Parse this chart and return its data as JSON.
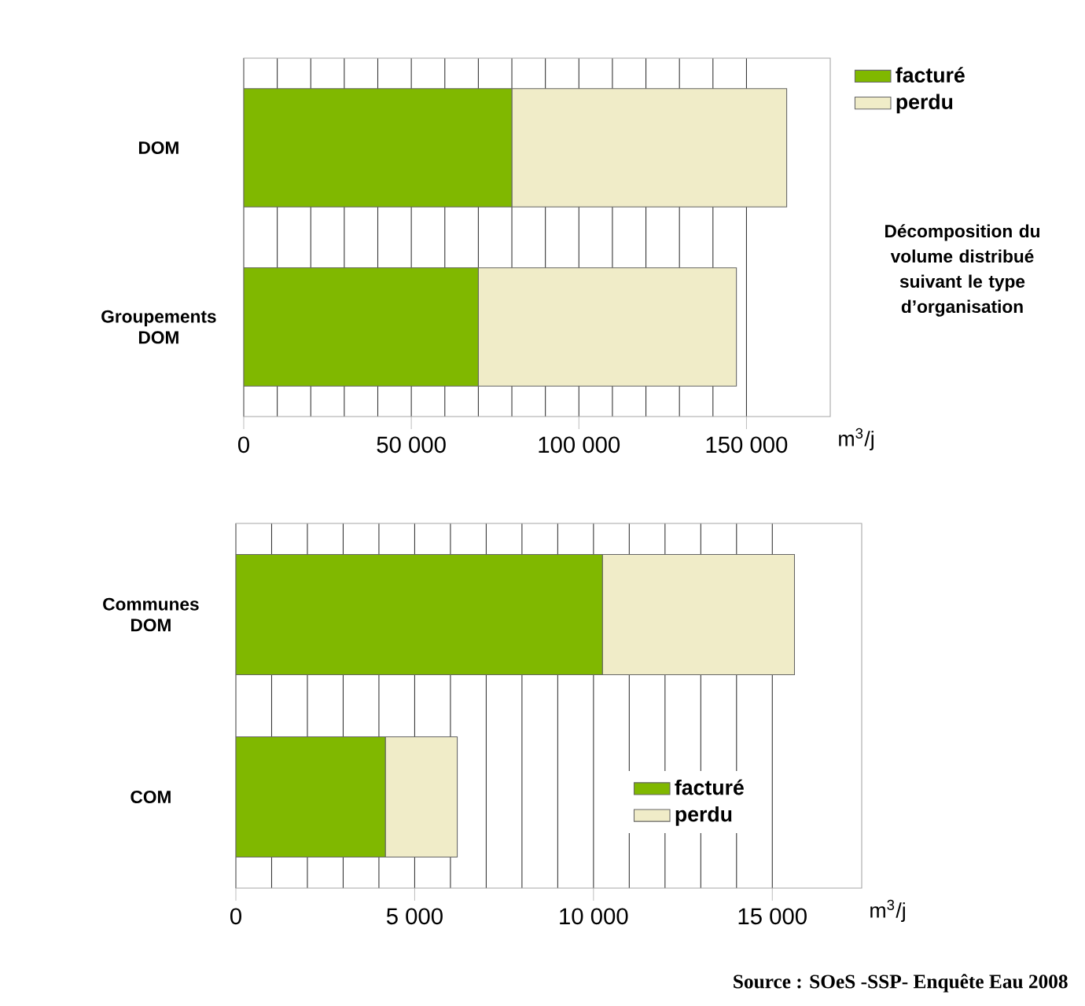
{
  "chart_data": [
    {
      "type": "bar",
      "orientation": "horizontal",
      "stacked": true,
      "xlabel": "m$^{3}$/j",
      "categories": [
        "DOM",
        "Groupements DOM"
      ],
      "series": [
        {
          "name": "facturé",
          "color": "#80b800",
          "values": [
            80000,
            70000
          ]
        },
        {
          "name": "perdu",
          "color": "#f0ecc8",
          "values": [
            82000,
            77000
          ]
        }
      ],
      "xlim": [
        0,
        175000
      ],
      "xticks": [
        0,
        {
          "value": 50000,
          "label": "50 000"
        },
        {
          "value": 100000,
          "label": "100 000"
        },
        {
          "value": 150000,
          "label": "150 000"
        }
      ],
      "grid": "x",
      "legend": "top right"
    },
    {
      "type": "other",
      "title": "Décomposition du volume distribué suivant le type d’organisation"
    },
    {
      "type": "bar",
      "orientation": "horizontal",
      "stacked": true,
      "xlabel": "m$^{3}$/j",
      "categories": [
        "Communes DOM",
        "COM"
      ],
      "series": [
        {
          "name": "facturé",
          "color": "#80b800",
          "values": [
            10250,
            4180
          ]
        },
        {
          "name": "perdu",
          "color": "#f0ecc8",
          "values": [
            5370,
            2010
          ]
        }
      ],
      "xlim": [
        0,
        17500
      ],
      "xticks": [
        0,
        {
          "value": 5000,
          "label": "5 000"
        },
        {
          "value": 10000,
          "label": "10 000"
        },
        {
          "value": 15000,
          "label": "15 000"
        }
      ],
      "grid": "x",
      "legend": "bottom right",
      "annotations": [
        "Source : SOeS -SSP- Enquête Eau 2008"
      ]
    }
  ]
}
